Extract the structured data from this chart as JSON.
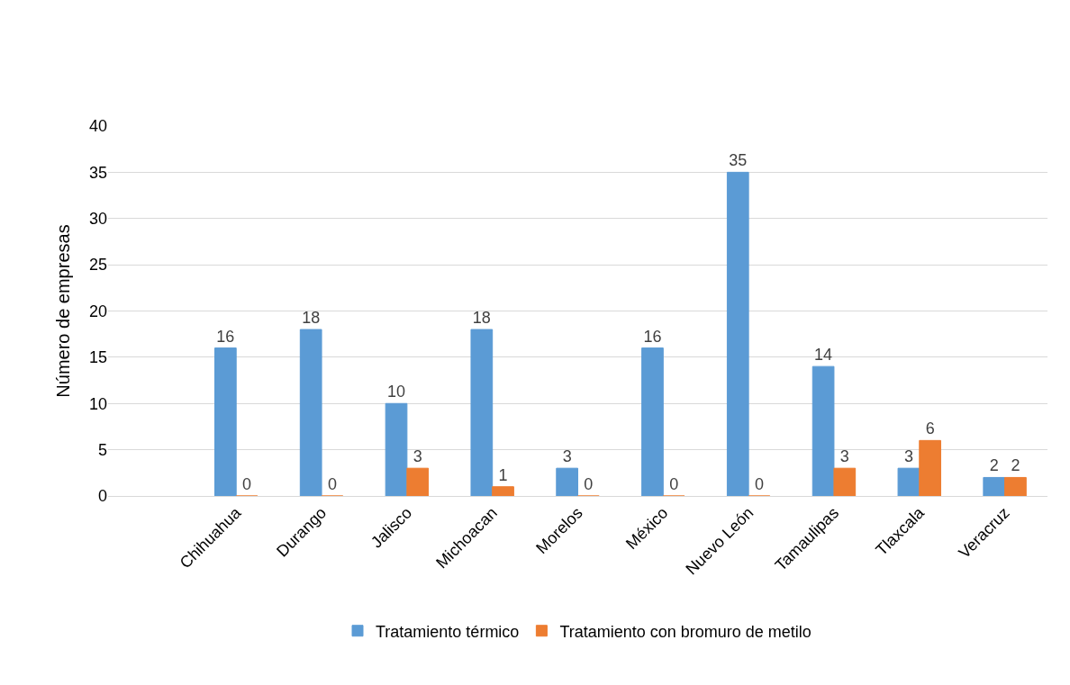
{
  "chart_data": {
    "type": "bar",
    "ylabel": "Número de empresas",
    "categories": [
      null,
      "Chihuahua",
      "Durango",
      "Jalisco",
      "Michoacan",
      "Morelos",
      "México",
      "Nuevo León",
      "Tamaulipas",
      "Tlaxcala",
      "Veracruz"
    ],
    "series": [
      {
        "name": "Tratamiento térmico",
        "color": "#5b9bd5",
        "values": [
          null,
          16,
          18,
          10,
          18,
          3,
          16,
          35,
          14,
          3,
          2
        ]
      },
      {
        "name": "Tratamiento con bromuro de metilo",
        "color": "#ed7d31",
        "values": [
          null,
          0,
          0,
          3,
          1,
          0,
          0,
          0,
          3,
          6,
          2
        ]
      }
    ],
    "ylim": [
      0,
      40
    ],
    "yticks": [
      0,
      5,
      10,
      15,
      20,
      25,
      30,
      35,
      40
    ],
    "grid": "y",
    "legend": "bottom",
    "data_labels": true
  }
}
